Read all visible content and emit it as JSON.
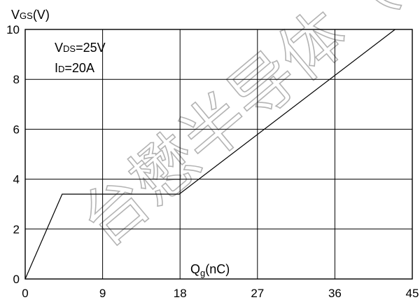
{
  "chart_data": {
    "type": "line",
    "x_ticks": [
      0,
      9,
      18,
      27,
      36,
      45
    ],
    "y_ticks": [
      0,
      2,
      4,
      6,
      8,
      10
    ],
    "xlim": [
      0,
      45
    ],
    "ylim": [
      0,
      10
    ],
    "grid": true,
    "ylabel": {
      "main": "V",
      "sub": "GS",
      "unit": "(V)"
    },
    "xlabel": {
      "main": "Q",
      "sub": "g",
      "unit": "(nC)"
    },
    "annotations": [
      {
        "main": "V",
        "sub": "DS",
        "value": "=25V"
      },
      {
        "main": "I",
        "sub": "D",
        "value": "=20A"
      }
    ],
    "series": [
      {
        "points": [
          [
            0,
            0
          ],
          [
            4.3,
            3.4
          ],
          [
            17.9,
            3.4
          ],
          [
            43,
            10
          ]
        ]
      }
    ]
  },
  "watermark": "台懋半导体（"
}
